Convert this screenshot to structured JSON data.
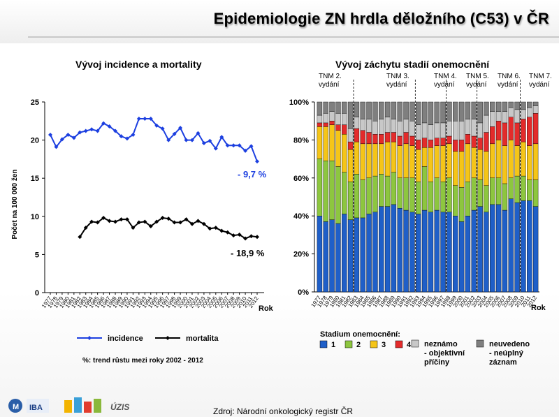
{
  "page": {
    "title": "Epidemiologie ZN hrdla děložního (C53) v ČR"
  },
  "left_title": "Vývoj incidence a mortality",
  "right_title": "Vývoj záchytu stadií onemocnění",
  "source": "Zdroj: Národní onkologický registr ČR",
  "logos": {
    "mu": "M",
    "iba": "IBA",
    "uzis": "ÚZIS"
  },
  "years_label_x": [
    "1977",
    "1978",
    "1979",
    "1980",
    "1981",
    "1982",
    "1983",
    "1984",
    "1985",
    "1986",
    "1987",
    "1988",
    "1989",
    "1990",
    "1991",
    "1992",
    "1993",
    "1994",
    "1995",
    "1996",
    "1997",
    "1998",
    "1999",
    "2000",
    "2001",
    "2002",
    "2003",
    "2004",
    "2005",
    "2006",
    "2007",
    "2008",
    "2009",
    "2010",
    "2011",
    "2012"
  ],
  "chart_data": [
    {
      "type": "line",
      "ylabel": "Počet na 100 000 žen",
      "xlabel": "Rok",
      "ylim": [
        0,
        25
      ],
      "yticks": [
        "0",
        "5",
        "10",
        "15",
        "20",
        "25"
      ],
      "x": [
        1977,
        1978,
        1979,
        1980,
        1981,
        1982,
        1983,
        1984,
        1985,
        1986,
        1987,
        1988,
        1989,
        1990,
        1991,
        1992,
        1993,
        1994,
        1995,
        1996,
        1997,
        1998,
        1999,
        2000,
        2001,
        2002,
        2003,
        2004,
        2005,
        2006,
        2007,
        2008,
        2009,
        2010,
        2011,
        2012
      ],
      "series": [
        {
          "name": "incidence",
          "color": "#1c3fe0",
          "values": [
            20.7,
            19.1,
            20.1,
            20.7,
            20.3,
            21.0,
            21.2,
            21.4,
            21.2,
            22.2,
            21.8,
            21.2,
            20.5,
            20.2,
            20.7,
            22.8,
            22.8,
            22.8,
            21.9,
            21.5,
            20.0,
            20.8,
            21.6,
            20.0,
            20.0,
            20.9,
            19.6,
            19.9,
            18.9,
            20.4,
            19.3,
            19.3,
            19.3,
            18.6,
            19.2,
            17.2
          ]
        },
        {
          "name": "mortalita",
          "color": "#000000",
          "values": [
            null,
            null,
            null,
            null,
            null,
            7.3,
            8.5,
            9.3,
            9.2,
            9.8,
            9.4,
            9.3,
            9.6,
            9.6,
            8.5,
            9.2,
            9.3,
            8.7,
            9.3,
            9.8,
            9.7,
            9.2,
            9.2,
            9.6,
            9.0,
            9.4,
            9.0,
            8.4,
            8.5,
            8.1,
            7.9,
            7.5,
            7.6,
            7.1,
            7.4,
            7.3
          ]
        }
      ],
      "annotations": [
        "- 9,7 %",
        "- 18,9 %"
      ],
      "footnote": "%: trend růstu mezi roky 2002 - 2012"
    },
    {
      "type": "bar",
      "stacked": true,
      "xlabel": "Rok",
      "ylim": [
        0,
        100
      ],
      "yticks": [
        "0%",
        "20%",
        "40%",
        "60%",
        "80%",
        "100%"
      ],
      "legend_title": "Stadium  onemocnění:",
      "tnm_labels": [
        {
          "name": "TNM 2.",
          "sub": "vydání"
        },
        {
          "name": "TNM 3.",
          "sub": "vydání"
        },
        {
          "name": "TNM 4.",
          "sub": "vydání"
        },
        {
          "name": "TNM 5.",
          "sub": "vydání"
        },
        {
          "name": "TNM 6.",
          "sub": "vydání"
        },
        {
          "name": "TNM 7.",
          "sub": "vydání"
        }
      ],
      "categories": [
        1977,
        1978,
        1979,
        1980,
        1981,
        1982,
        1983,
        1984,
        1985,
        1986,
        1987,
        1988,
        1989,
        1990,
        1991,
        1992,
        1993,
        1994,
        1995,
        1996,
        1997,
        1998,
        1999,
        2000,
        2001,
        2002,
        2003,
        2004,
        2005,
        2006,
        2007,
        2008,
        2009,
        2010,
        2011,
        2012
      ],
      "series": [
        {
          "name": "1",
          "color": "#1f5fc8",
          "values": [
            40,
            37,
            38,
            36,
            41,
            38,
            39,
            39,
            41,
            42,
            45,
            45,
            46,
            44,
            43,
            42,
            41,
            43,
            42,
            43,
            42,
            42,
            40,
            37,
            40,
            43,
            45,
            42,
            46,
            46,
            43,
            49,
            47,
            48,
            48,
            45
          ]
        },
        {
          "name": "2",
          "color": "#8dc63f",
          "values": [
            30,
            32,
            31,
            30,
            22,
            20,
            23,
            20,
            19,
            19,
            17,
            16,
            17,
            16,
            17,
            18,
            17,
            23,
            16,
            17,
            16,
            18,
            16,
            18,
            18,
            17,
            14,
            14,
            14,
            14,
            14,
            11,
            14,
            13,
            11,
            14
          ]
        },
        {
          "name": "3",
          "color": "#f5c518",
          "values": [
            17,
            18,
            19,
            19,
            20,
            17,
            17,
            19,
            18,
            17,
            16,
            18,
            16,
            17,
            18,
            17,
            17,
            10,
            18,
            17,
            19,
            18,
            18,
            19,
            20,
            16,
            16,
            18,
            18,
            20,
            20,
            20,
            16,
            18,
            18,
            19
          ]
        },
        {
          "name": "4",
          "color": "#e32b2b",
          "values": [
            2,
            2,
            2,
            3,
            5,
            4,
            7,
            7,
            6,
            5,
            5,
            5,
            5,
            5,
            6,
            5,
            5,
            5,
            4,
            4,
            4,
            4,
            6,
            6,
            5,
            6,
            6,
            10,
            9,
            10,
            12,
            12,
            12,
            12,
            15,
            16
          ]
        },
        {
          "name": "neznámo - objektivní příčiny",
          "color": "#c8c8c8",
          "values": [
            4,
            5,
            5,
            6,
            6,
            7,
            6,
            6,
            7,
            7,
            8,
            8,
            7,
            8,
            7,
            8,
            8,
            8,
            8,
            8,
            8,
            8,
            10,
            10,
            8,
            9,
            8,
            9,
            8,
            5,
            6,
            5,
            7,
            5,
            5,
            4
          ]
        },
        {
          "name": "neuvedeno - neúplný záznam",
          "color": "#7f7f7f",
          "values": [
            7,
            6,
            5,
            6,
            6,
            14,
            8,
            9,
            9,
            10,
            9,
            8,
            9,
            10,
            9,
            10,
            12,
            11,
            12,
            11,
            11,
            10,
            10,
            10,
            9,
            9,
            11,
            7,
            5,
            5,
            5,
            3,
            4,
            4,
            3,
            2
          ]
        }
      ],
      "legend_items": [
        {
          "label": "1",
          "color": "#1f5fc8"
        },
        {
          "label": "2",
          "color": "#8dc63f"
        },
        {
          "label": "3",
          "color": "#f5c518"
        },
        {
          "label": "4",
          "color": "#e32b2b"
        },
        {
          "label": "neznámo - objektivní příčiny",
          "lines": [
            "neznámo",
            "- objektivní",
            "příčiny"
          ],
          "color": "#c8c8c8"
        },
        {
          "label": "neuvedeno - neúplný záznam",
          "lines": [
            "neuvedeno",
            "- neúplný",
            "záznam"
          ],
          "color": "#7f7f7f"
        }
      ]
    }
  ]
}
